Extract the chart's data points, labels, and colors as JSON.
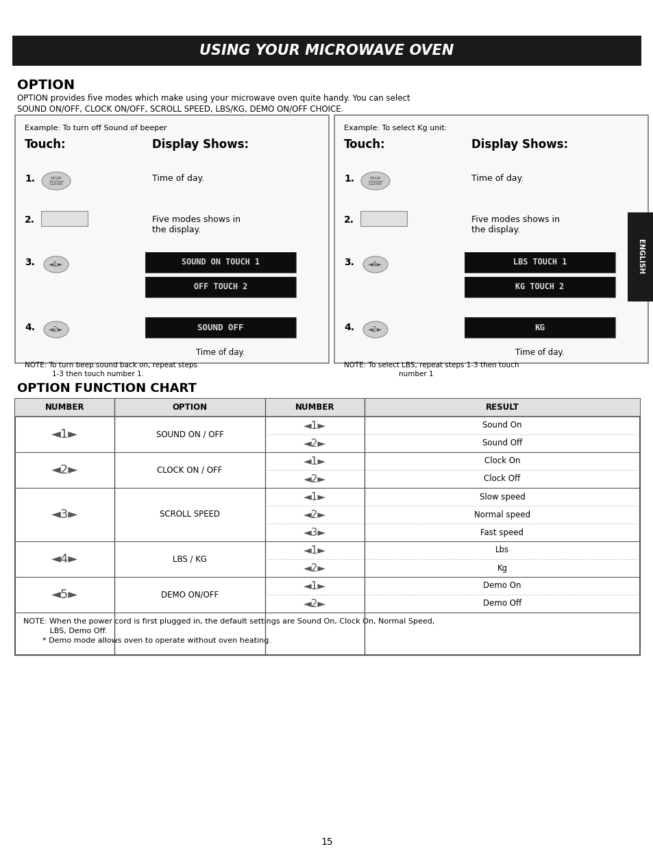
{
  "page_bg": "#ffffff",
  "header_bg": "#1a1a1a",
  "header_text": "USING YOUR MICROWAVE OVEN",
  "section1_title": "OPTION",
  "section1_body1": "OPTION provides five modes which make using your microwave oven quite handy. You can select",
  "section1_body2": "SOUND ON/OFF, CLOCK ON/OFF, SCROLL SPEED, LBS/KG, DEMO ON/OFF CHOICE.",
  "box1_title": "Example: To turn off Sound of beeper",
  "box2_title": "Example: To select Kg unit:",
  "section2_title": "OPTION FUNCTION CHART",
  "table_headers": [
    "NUMBER",
    "OPTION",
    "NUMBER",
    "RESULT"
  ],
  "table_rows": [
    {
      "num": "◄1►",
      "option": "SOUND ON / OFF",
      "sub": [
        "◄1►",
        "◄2►"
      ],
      "results": [
        "Sound On",
        "Sound Off"
      ]
    },
    {
      "num": "◄2►",
      "option": "CLOCK ON / OFF",
      "sub": [
        "◄1►",
        "◄2►"
      ],
      "results": [
        "Clock On",
        "Clock Off"
      ]
    },
    {
      "num": "◄3►",
      "option": "SCROLL SPEED",
      "sub": [
        "◄1►",
        "◄2►",
        "◄3►"
      ],
      "results": [
        "Slow speed",
        "Normal speed",
        "Fast speed"
      ]
    },
    {
      "num": "◄4►",
      "option": "LBS / KG",
      "sub": [
        "◄1►",
        "◄2►"
      ],
      "results": [
        "Lbs",
        "Kg"
      ]
    },
    {
      "num": "◄5►",
      "option": "DEMO ON/OFF",
      "sub": [
        "◄1►",
        "◄2►"
      ],
      "results": [
        "Demo On",
        "Demo Off"
      ]
    }
  ],
  "note_text1": "NOTE: When the power cord is first plugged in, the default settings are Sound On, Clock On, Normal Speed,",
  "note_text2": "           LBS, Demo Off.",
  "note_text3": "        * Demo mode allows oven to operate without oven heating.",
  "page_number": "15"
}
